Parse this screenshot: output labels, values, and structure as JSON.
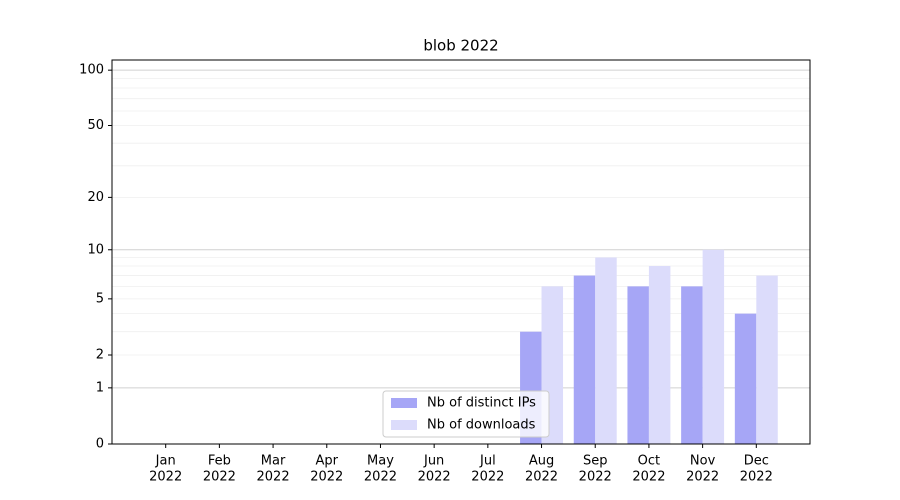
{
  "chart_data": {
    "type": "bar",
    "title": "blob 2022",
    "categories": [
      [
        "Jan",
        "2022"
      ],
      [
        "Feb",
        "2022"
      ],
      [
        "Mar",
        "2022"
      ],
      [
        "Apr",
        "2022"
      ],
      [
        "May",
        "2022"
      ],
      [
        "Jun",
        "2022"
      ],
      [
        "Jul",
        "2022"
      ],
      [
        "Aug",
        "2022"
      ],
      [
        "Sep",
        "2022"
      ],
      [
        "Oct",
        "2022"
      ],
      [
        "Nov",
        "2022"
      ],
      [
        "Dec",
        "2022"
      ]
    ],
    "series": [
      {
        "name": "Nb of distinct IPs",
        "color": "#a6a6f6",
        "values": [
          0,
          0,
          0,
          0,
          0,
          0,
          0,
          3,
          7,
          6,
          6,
          4
        ]
      },
      {
        "name": "Nb of downloads",
        "color": "#dcdcfb",
        "values": [
          0,
          0,
          0,
          0,
          0,
          0,
          0,
          6,
          9,
          8,
          10,
          7
        ]
      }
    ],
    "yscale": "log1p",
    "ylim": [
      0,
      113.5
    ],
    "yticks": [
      0,
      1,
      2,
      5,
      10,
      20,
      50,
      100
    ],
    "ymajorgrid": [
      1,
      10,
      100
    ],
    "yminorgrid": [
      2,
      3,
      4,
      5,
      6,
      7,
      8,
      9,
      20,
      30,
      40,
      50,
      60,
      70,
      80,
      90
    ],
    "grid": true,
    "legend": "lower center"
  }
}
